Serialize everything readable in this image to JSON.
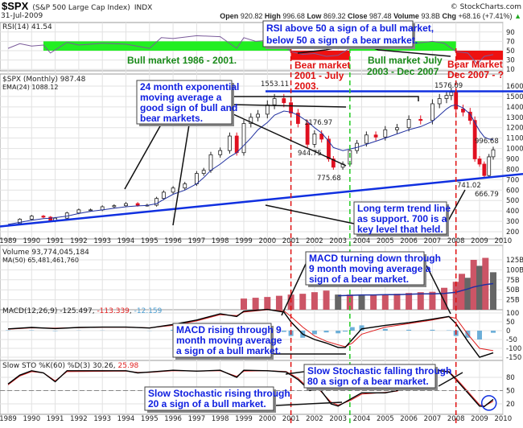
{
  "header": {
    "symbol": "$SPX",
    "name": "(S&P 500 Large Cap Index)",
    "exchange": "INDX",
    "date": "31-Jul-2009",
    "brand": "© StockCharts.com",
    "open_label": "Open",
    "open": "920.82",
    "high_label": "High",
    "high": "996.68",
    "low_label": "Low",
    "low": "869.32",
    "close_label": "Close",
    "close": "987.48",
    "volume_label": "Volume",
    "volume": "93.8B",
    "chg_label": "Chg",
    "chg": "+68.16 (+7.41%)",
    "chg_arrow": "▲"
  },
  "colors": {
    "up": "#222222",
    "down": "#e01020",
    "ema": "#2030a0",
    "green_zone": "#22ee22",
    "red_zone": "#ee1111",
    "annotation": "#1020e0",
    "trendline": "#1030e0",
    "volume_up": "#666666",
    "volume_down": "#cc5566",
    "macd_hist": "#4a9cd0"
  },
  "chart_data": [
    {
      "type": "line",
      "panel": "RSI",
      "legend": "RSI(14) 41.54",
      "y_ticks": [
        "90",
        "70",
        "50",
        "30",
        "10"
      ],
      "x": [
        1989,
        1989.5,
        1990,
        1990.5,
        1990.8,
        1991.5,
        1992,
        1993,
        1994,
        1995,
        1995.5,
        1996,
        1997,
        1998,
        1998.7,
        1999,
        1999.5,
        2000,
        2000.7,
        2001,
        2001.5,
        2002,
        2002.5,
        2003,
        2003.5,
        2004,
        2005,
        2006,
        2007,
        2007.5,
        2008,
        2008.5,
        2008.9,
        2009.2,
        2009.58
      ],
      "values": [
        55,
        65,
        60,
        62,
        45,
        68,
        62,
        66,
        64,
        55,
        78,
        76,
        82,
        80,
        55,
        78,
        70,
        72,
        60,
        48,
        42,
        44,
        38,
        40,
        55,
        60,
        63,
        64,
        70,
        66,
        48,
        45,
        22,
        38,
        41.54
      ]
    },
    {
      "type": "candlestick",
      "panel": "Price",
      "legend": "$SPX (Monthly) 987.48",
      "ema_legend": "EMA(24) 1088.12",
      "y_scale": "linear",
      "ylim": [
        150,
        1650
      ],
      "y_ticks": [
        "1600",
        "1500",
        "1400",
        "1300",
        "1200",
        "1100",
        "1000",
        "900",
        "800",
        "700",
        "600",
        "500",
        "400",
        "300",
        "200"
      ],
      "x": [
        1989,
        1989.5,
        1990,
        1990.5,
        1990.8,
        1991,
        1991.5,
        1992,
        1992.5,
        1993,
        1993.5,
        1994,
        1994.5,
        1994.9,
        1995.3,
        1995.6,
        1996,
        1996.5,
        1997,
        1997.3,
        1997.6,
        1998,
        1998.4,
        1998.7,
        1999,
        1999.3,
        1999.6,
        2000,
        2000.3,
        2000.7,
        2001,
        2001.3,
        2001.7,
        2002,
        2002.3,
        2002.6,
        2002.8,
        2003.2,
        2003.5,
        2003.8,
        2004.2,
        2004.6,
        2005,
        2005.5,
        2006,
        2006.5,
        2007,
        2007.3,
        2007.6,
        2007.8,
        2008,
        2008.3,
        2008.6,
        2008.8,
        2009,
        2009.2,
        2009.4,
        2009.58
      ],
      "values": [
        280,
        320,
        350,
        340,
        300,
        330,
        380,
        410,
        410,
        440,
        450,
        470,
        455,
        455,
        520,
        580,
        620,
        660,
        760,
        790,
        940,
        980,
        1120,
        960,
        1240,
        1300,
        1330,
        1420,
        1480,
        1440,
        1340,
        1240,
        1040,
        1140,
        1090,
        900,
        820,
        850,
        980,
        1050,
        1130,
        1110,
        1180,
        1200,
        1280,
        1270,
        1430,
        1480,
        1510,
        1540,
        1380,
        1350,
        1270,
        900,
        850,
        740,
        920,
        987.48
      ],
      "ema": [
        270,
        290,
        310,
        325,
        330,
        335,
        350,
        375,
        395,
        410,
        425,
        440,
        448,
        452,
        470,
        510,
        560,
        600,
        660,
        720,
        790,
        850,
        920,
        960,
        1030,
        1100,
        1180,
        1250,
        1320,
        1360,
        1350,
        1320,
        1260,
        1200,
        1150,
        1070,
        1010,
        980,
        995,
        1010,
        1040,
        1070,
        1100,
        1140,
        1180,
        1210,
        1260,
        1320,
        1380,
        1410,
        1420,
        1390,
        1330,
        1250,
        1170,
        1110,
        1090,
        1088.12
      ],
      "labels": [
        "1553.11",
        "1576.09",
        "1176.97",
        "944.75",
        "775.68",
        "996.68",
        "741.02",
        "666.79"
      ]
    },
    {
      "type": "bar",
      "panel": "Volume",
      "legend": "Volume 93,774,045,184",
      "ma_legend": "MA(50) 65,481,461,760",
      "y_ticks": [
        "125B",
        "100B",
        "75B",
        "50B",
        "25B"
      ],
      "x": [
        1999,
        1999.5,
        2000,
        2000.5,
        2001,
        2001.5,
        2002,
        2002.5,
        2003,
        2003.5,
        2004,
        2004.5,
        2005,
        2005.5,
        2006,
        2006.5,
        2007,
        2007.5,
        2008,
        2008.25,
        2008.5,
        2008.75,
        2009,
        2009.25,
        2009.58
      ],
      "values": [
        28,
        30,
        32,
        35,
        38,
        40,
        44,
        48,
        38,
        38,
        36,
        38,
        38,
        40,
        42,
        44,
        45,
        55,
        70,
        90,
        80,
        125,
        110,
        130,
        94
      ],
      "ma": [
        null,
        null,
        null,
        null,
        null,
        null,
        null,
        null,
        35,
        36,
        37,
        37,
        38,
        38,
        39,
        40,
        40,
        41,
        44,
        48,
        52,
        57,
        60,
        63,
        65.5
      ]
    },
    {
      "type": "line",
      "panel": "MACD",
      "legend": "MACD(12,26,9)",
      "macd_value": "-125.497",
      "signal_value": "-113.339",
      "hist_value": "-12.159",
      "y_ticks": [
        "100",
        "50",
        "0",
        "-50",
        "-100",
        "-150"
      ],
      "x": [
        1989,
        1990,
        1991,
        1992,
        1993,
        1994,
        1995,
        1996,
        1997,
        1998,
        1998.7,
        1999,
        2000,
        2000.7,
        2001,
        2001.5,
        2002,
        2002.5,
        2003,
        2003.3,
        2003.6,
        2004,
        2005,
        2006,
        2007,
        2007.7,
        2008,
        2008.5,
        2009,
        2009.58
      ],
      "macd": [
        10,
        18,
        12,
        18,
        20,
        20,
        15,
        35,
        60,
        95,
        80,
        110,
        120,
        105,
        50,
        -20,
        -50,
        -70,
        -95,
        -95,
        -50,
        10,
        30,
        45,
        65,
        80,
        40,
        -60,
        -150,
        -125.497
      ],
      "signal": [
        8,
        16,
        14,
        17,
        19,
        20,
        16,
        30,
        55,
        90,
        85,
        105,
        118,
        112,
        80,
        20,
        -30,
        -60,
        -80,
        -90,
        -70,
        -20,
        20,
        40,
        60,
        78,
        70,
        -20,
        -100,
        -113.339
      ]
    },
    {
      "type": "line",
      "panel": "Slow STO",
      "legend": "Slow STO %K(60) %D(3)",
      "k_value": "30.26",
      "d_value": "25.98",
      "y_ticks": [
        "80",
        "50",
        "20"
      ],
      "x": [
        1989,
        1989.5,
        1990,
        1990.5,
        1991,
        1991.5,
        1994,
        1994.5,
        1995,
        1996,
        1997,
        1998,
        1998.7,
        1999,
        2000,
        2000.8,
        2001.3,
        2001.8,
        2002.2,
        2002.7,
        2003,
        2003.5,
        2004,
        2005,
        2005.5,
        2006,
        2006.5,
        2007,
        2007.7,
        2008,
        2008.5,
        2009,
        2009.2,
        2009.58
      ],
      "k": [
        65,
        85,
        95,
        90,
        70,
        95,
        95,
        90,
        92,
        96,
        94,
        96,
        80,
        96,
        95,
        92,
        75,
        50,
        55,
        20,
        15,
        30,
        45,
        45,
        50,
        60,
        80,
        98,
        92,
        75,
        45,
        15,
        14,
        30.26
      ],
      "d": [
        63,
        83,
        93,
        90,
        72,
        93,
        94,
        91,
        91,
        95,
        94,
        95,
        82,
        94,
        95,
        93,
        78,
        53,
        52,
        24,
        17,
        27,
        42,
        46,
        49,
        58,
        77,
        96,
        93,
        78,
        48,
        18,
        15,
        25.98
      ]
    }
  ],
  "x_axis": {
    "years": [
      "1989",
      "1990",
      "1991",
      "1992",
      "1993",
      "1994",
      "1995",
      "1996",
      "1997",
      "1998",
      "1999",
      "2000",
      "2001",
      "2002",
      "2003",
      "2004",
      "2005",
      "2006",
      "2007",
      "2008",
      "2009",
      "2010"
    ]
  },
  "annotations": {
    "rsi": [
      "RSI above 50 a sign of a bull market,",
      "below 50 a sign of a bear market."
    ],
    "bull1": "Bull market 1986 - 2001.",
    "bear1": [
      "Bear market",
      "2001 - July",
      "2003."
    ],
    "bull2": [
      "Bull market July",
      "2003 - Dec 2007"
    ],
    "bear2": [
      "Bear Market",
      "Dec 2007 - ?"
    ],
    "ema": [
      "24 month exponential",
      "moving average a",
      "good sign of bull and",
      "bear markets."
    ],
    "trend": [
      "Long term trend line",
      "as support. 700 is a",
      "key level that held."
    ],
    "macd_down": [
      "MACD turning down through",
      "9 month moving average a",
      "sign of a bear market."
    ],
    "macd_up": [
      "MACD rising through 9",
      "month moving average",
      "a sign of a bull market."
    ],
    "sto_down": [
      "Slow Stochastic falling through",
      "80 a sign of a bear market."
    ],
    "sto_up": [
      "Slow Stochastic rising through",
      "20 a sign of a bull market."
    ]
  }
}
